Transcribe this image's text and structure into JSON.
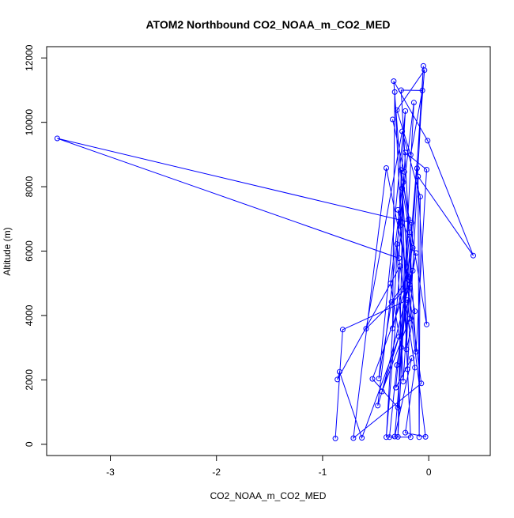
{
  "chart_data": {
    "type": "line",
    "title": "ATOM2 Northbound CO2_NOAA_m_CO2_MED",
    "xlabel": "CO2_NOAA_m_CO2_MED",
    "ylabel": "Altitude (m)",
    "xlim": [
      -3.6,
      0.58
    ],
    "ylim": [
      -350,
      12350
    ],
    "xticks": [
      -3,
      -2,
      -1,
      0
    ],
    "yticks": [
      0,
      2000,
      4000,
      6000,
      8000,
      10000,
      12000
    ],
    "markers": "open-circle",
    "grid": false,
    "color": "#0000ff",
    "series": [
      {
        "points": [
          [
            -0.88,
            180
          ],
          [
            -0.81,
            3560
          ],
          [
            -0.84,
            2250
          ],
          [
            -0.86,
            2010
          ],
          [
            -0.71,
            190
          ],
          [
            -0.63,
            200
          ],
          [
            -0.59,
            3590
          ],
          [
            -0.53,
            2030
          ],
          [
            -0.48,
            1200
          ],
          [
            -0.47,
            2040
          ],
          [
            -0.44,
            1640
          ],
          [
            -0.4,
            220
          ],
          [
            -0.37,
            220
          ],
          [
            -0.36,
            5000
          ],
          [
            -0.35,
            4420
          ],
          [
            -0.34,
            3600
          ],
          [
            -0.33,
            11280
          ],
          [
            -0.32,
            10940
          ],
          [
            -0.31,
            1760
          ],
          [
            -0.3,
            2460
          ],
          [
            -0.3,
            10380
          ],
          [
            -0.29,
            230
          ],
          [
            -0.29,
            1140
          ],
          [
            -0.28,
            3340
          ],
          [
            -0.27,
            5530
          ],
          [
            -0.27,
            6790
          ],
          [
            -0.26,
            8520
          ],
          [
            -0.26,
            11000
          ],
          [
            -0.25,
            9720
          ],
          [
            -0.24,
            8140
          ],
          [
            -0.23,
            8460
          ],
          [
            -0.22,
            360
          ],
          [
            -0.22,
            10350
          ],
          [
            -0.21,
            2950
          ],
          [
            -0.2,
            2330
          ],
          [
            -0.19,
            5200
          ],
          [
            -0.18,
            4950
          ],
          [
            -0.18,
            6580
          ],
          [
            -0.17,
            220
          ],
          [
            -0.16,
            2680
          ],
          [
            -0.15,
            5390
          ],
          [
            -0.14,
            10610
          ],
          [
            -0.13,
            2380
          ],
          [
            -0.12,
            5940
          ],
          [
            -0.11,
            8570
          ],
          [
            -0.1,
            8320
          ],
          [
            -0.09,
            220
          ],
          [
            -0.08,
            7690
          ],
          [
            -0.07,
            1890
          ],
          [
            -0.06,
            10990
          ],
          [
            -0.05,
            11750
          ],
          [
            -0.04,
            11620
          ],
          [
            -0.03,
            230
          ],
          [
            -0.02,
            8530
          ],
          [
            -0.02,
            3720
          ],
          [
            -0.01,
            9430
          ],
          [
            0.42,
            5860
          ],
          [
            -0.16,
            6880
          ],
          [
            -3.5,
            9500
          ],
          [
            -0.28,
            5780
          ],
          [
            -0.32,
            240
          ],
          [
            -0.29,
            7280
          ],
          [
            -0.2,
            4480
          ],
          [
            -0.15,
            6100
          ],
          [
            -0.24,
            1950
          ],
          [
            -0.4,
            8580
          ],
          [
            -0.18,
            3900
          ],
          [
            -0.13,
            4130
          ],
          [
            -0.22,
            9060
          ],
          [
            -0.3,
            6220
          ],
          [
            -0.12,
            2870
          ],
          [
            -0.25,
            7950
          ],
          [
            -0.19,
            6990
          ],
          [
            -0.26,
            3010
          ],
          [
            -0.17,
            8990
          ],
          [
            -0.34,
            10090
          ]
        ],
        "path_order": [
          0,
          1,
          62,
          66,
          10,
          40,
          7,
          22,
          41,
          8,
          23,
          5,
          2,
          3,
          24,
          11,
          32,
          9,
          14,
          35,
          16,
          55,
          56,
          45,
          46,
          47,
          28,
          6,
          36,
          43,
          19,
          12,
          38,
          17,
          15,
          63,
          61,
          48,
          4,
          65,
          67,
          33,
          57,
          58,
          59,
          68,
          53,
          70,
          27,
          49,
          74,
          20,
          51,
          60,
          39,
          18,
          37,
          71,
          34,
          50,
          64,
          69,
          42,
          31,
          52,
          25,
          26,
          72,
          21,
          29,
          54,
          44,
          73,
          13,
          30,
          75
        ]
      }
    ]
  }
}
